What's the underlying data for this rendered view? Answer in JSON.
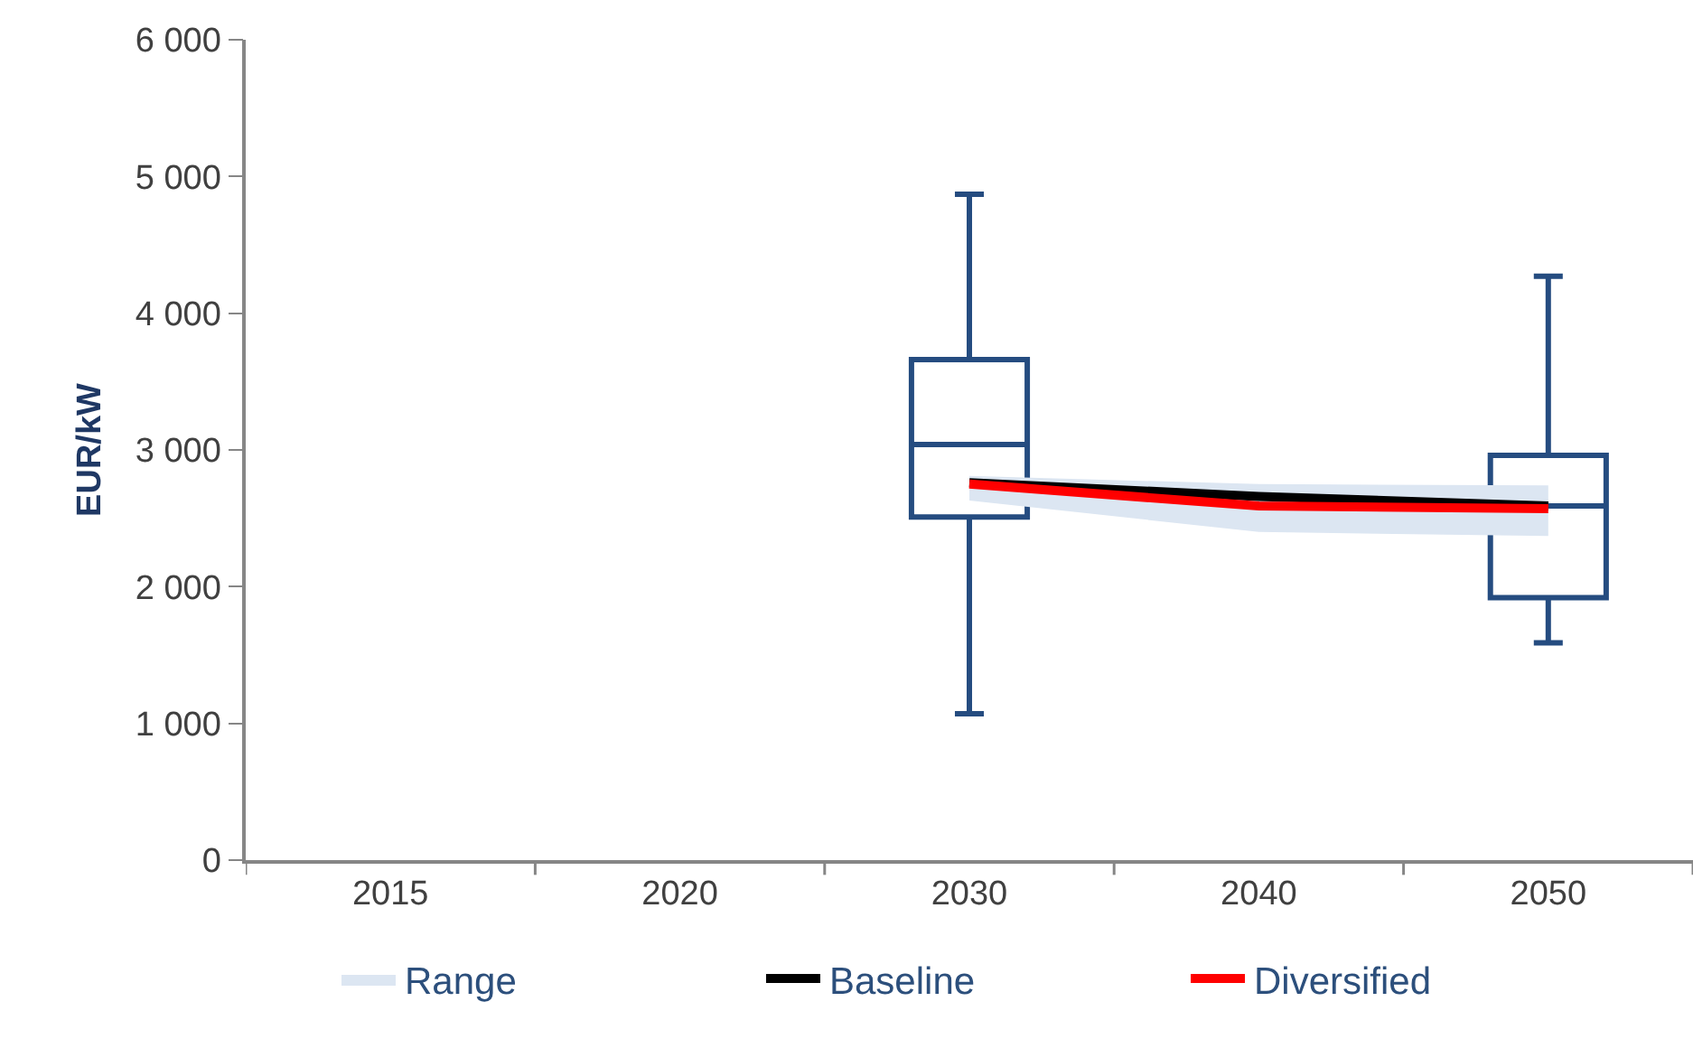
{
  "chart_data": {
    "type": "box",
    "ylabel": "EUR/kW",
    "categories": [
      "2015",
      "2020",
      "2030",
      "2040",
      "2050"
    ],
    "ylim": [
      0,
      6000
    ],
    "yticks": [
      0,
      {
        "value": 1000,
        "label": "1 000"
      },
      {
        "value": 2000,
        "label": "2 000"
      },
      {
        "value": 3000,
        "label": "3 000"
      },
      {
        "value": 4000,
        "label": "4 000"
      },
      {
        "value": 5000,
        "label": "5 000"
      },
      {
        "value": 6000,
        "label": "6 000"
      }
    ],
    "grid": false,
    "legend": "bottom",
    "marker": "none",
    "series": [
      {
        "color": "#254c80",
        "boxes": [
          null,
          null,
          {
            "low": 1070,
            "q1": 2510,
            "median": 3040,
            "q3": 3660,
            "high": 4870
          },
          null,
          {
            "low": 1590,
            "q1": 1920,
            "median": 2590,
            "q3": 2960,
            "high": 4270
          }
        ]
      },
      {
        "type": "area",
        "name": "Range",
        "color": "#dce6f2",
        "values": [
          null,
          null,
          null,
          null,
          null
        ],
        "lower": [
          null,
          null,
          2630,
          2400,
          2370
        ],
        "upper": [
          null,
          null,
          2810,
          2750,
          2740
        ]
      },
      {
        "type": "line",
        "name": "Baseline",
        "color": "#000000",
        "values": [
          null,
          null,
          2760,
          2660,
          2590
        ]
      },
      {
        "type": "line",
        "name": "Diversified",
        "color": "#ff0000",
        "values": [
          null,
          null,
          2750,
          2590,
          2570
        ]
      }
    ]
  }
}
